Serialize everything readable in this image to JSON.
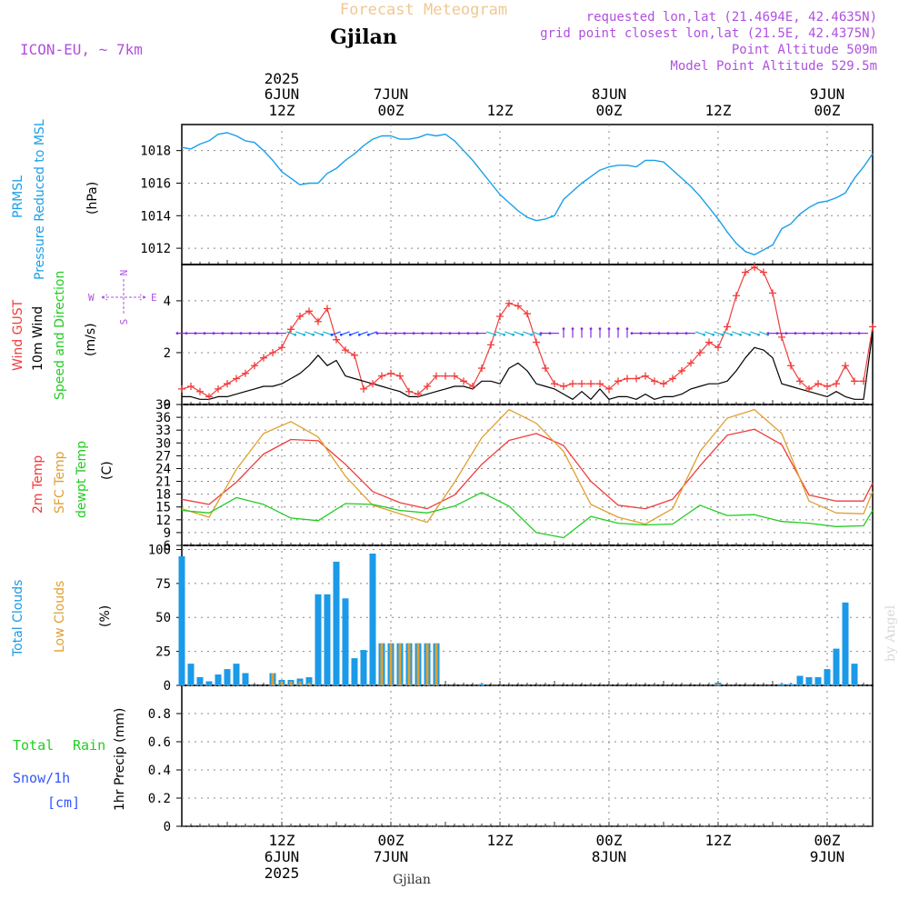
{
  "header": {
    "title": "Forecast Meteogram",
    "location": "Gjilan",
    "model": "ICON-EU, ~ 7km",
    "requested": "requested lon,lat (21.4694E, 42.4635N)",
    "grid": "grid point closest lon,lat (21.5E, 42.4375N)",
    "point_alt": "Point Altitude 509m",
    "model_alt": "Model Point Altitude 529.5m"
  },
  "time_axis": {
    "top_labels": [
      {
        "l1": "2025",
        "l2": "6JUN",
        "l3": "12Z",
        "h": 12
      },
      {
        "l1": "",
        "l2": "7JUN",
        "l3": "00Z",
        "h": 24
      },
      {
        "l1": "",
        "l2": "",
        "l3": "12Z",
        "h": 36
      },
      {
        "l1": "",
        "l2": "8JUN",
        "l3": "00Z",
        "h": 48
      },
      {
        "l1": "",
        "l2": "",
        "l3": "12Z",
        "h": 60
      },
      {
        "l1": "",
        "l2": "9JUN",
        "l3": "00Z",
        "h": 72
      }
    ],
    "bottom_labels": [
      {
        "l1": "12Z",
        "l2": "6JUN",
        "l3": "2025",
        "h": 12
      },
      {
        "l1": "00Z",
        "l2": "7JUN",
        "l3": "",
        "h": 24
      },
      {
        "l1": "12Z",
        "l2": "",
        "l3": "",
        "h": 36
      },
      {
        "l1": "00Z",
        "l2": "8JUN",
        "l3": "",
        "h": 48
      },
      {
        "l1": "12Z",
        "l2": "",
        "l3": "",
        "h": 60
      },
      {
        "l1": "00Z",
        "l2": "9JUN",
        "l3": "",
        "h": 72
      }
    ],
    "start_hour": 1,
    "end_hour": 77
  },
  "panels": {
    "pressure": {
      "label1": "PRMSL",
      "label2": "Pressure Reduced to MSL",
      "unit": "(hPa)"
    },
    "wind": {
      "label1": "Wind GUST",
      "label2": "10m Wind",
      "label3": "Speed and Direction",
      "unit": "(m/s)",
      "compass": {
        "n": "N",
        "s": "S",
        "w": "W",
        "e": "E"
      }
    },
    "temp": {
      "label1": "2m Temp",
      "label2": "SFC Temp",
      "label3": "dewpt Temp",
      "unit": "(C)"
    },
    "clouds": {
      "label1": "Total Clouds",
      "label2": "Low Clouds",
      "unit": "(%)"
    },
    "precip": {
      "label1": "Total",
      "label2": "Rain",
      "label3": "Snow/1h",
      "label4": "[cm]",
      "unit": "1hr Precip (mm)"
    }
  },
  "footer": {
    "location": "Gjilan",
    "credit": "by Angel"
  },
  "colors": {
    "pressure": "#1aa0e8",
    "gust": "#f03c3c",
    "wind": "#000000",
    "sfc": "#e0a030",
    "dewpt": "#22cc22",
    "total_cloud": "#1a9ae8",
    "low_cloud": "#e0a030",
    "precip_total": "#22cc22",
    "precip_snow": "#3355ff",
    "purple": "#b050e0"
  },
  "chart_data": [
    {
      "type": "line",
      "title": "PRMSL Pressure Reduced to MSL",
      "ylabel": "(hPa)",
      "ylim": [
        1011.0,
        1019.6
      ],
      "yticks": [
        1012,
        1014,
        1016,
        1018
      ],
      "x": [
        1,
        2,
        3,
        4,
        5,
        6,
        7,
        8,
        9,
        10,
        11,
        12,
        13,
        14,
        15,
        16,
        17,
        18,
        19,
        20,
        21,
        22,
        23,
        24,
        25,
        26,
        27,
        28,
        29,
        30,
        31,
        32,
        33,
        34,
        35,
        36,
        37,
        38,
        39,
        40,
        41,
        42,
        43,
        44,
        45,
        46,
        47,
        48,
        49,
        50,
        51,
        52,
        53,
        54,
        55,
        56,
        57,
        58,
        59,
        60,
        61,
        62,
        63,
        64,
        65,
        66,
        67,
        68,
        69,
        70,
        71,
        72,
        73,
        74,
        75,
        76,
        77
      ],
      "series": [
        {
          "name": "PRMSL",
          "values": [
            1018.2,
            1018.1,
            1018.4,
            1018.6,
            1019.0,
            1019.1,
            1018.9,
            1018.6,
            1018.5,
            1018.0,
            1017.4,
            1016.7,
            1016.3,
            1015.9,
            1016.0,
            1016.0,
            1016.6,
            1016.9,
            1017.4,
            1017.8,
            1018.3,
            1018.7,
            1018.9,
            1018.9,
            1018.7,
            1018.7,
            1018.8,
            1019.0,
            1018.9,
            1019.0,
            1018.6,
            1018.0,
            1017.4,
            1016.7,
            1016.0,
            1015.3,
            1014.8,
            1014.3,
            1013.9,
            1013.7,
            1013.8,
            1014.0,
            1015.0,
            1015.5,
            1016.0,
            1016.4,
            1016.8,
            1017.0,
            1017.1,
            1017.1,
            1017.0,
            1017.4,
            1017.4,
            1017.3,
            1016.8,
            1016.3,
            1015.8,
            1015.2,
            1014.5,
            1013.8,
            1013.0,
            1012.3,
            1011.8,
            1011.6,
            1011.9,
            1012.2,
            1013.2,
            1013.5,
            1014.1,
            1014.5,
            1014.8,
            1014.9,
            1015.1,
            1015.4,
            1016.3,
            1017.0,
            1017.8
          ]
        }
      ]
    },
    {
      "type": "line",
      "title": "Wind GUST / 10m Wind Speed and Direction",
      "ylabel": "(m/s)",
      "ylim": [
        0,
        5.4
      ],
      "yticks": [
        0,
        2,
        4
      ],
      "x": [
        1,
        2,
        3,
        4,
        5,
        6,
        7,
        8,
        9,
        10,
        11,
        12,
        13,
        14,
        15,
        16,
        17,
        18,
        19,
        20,
        21,
        22,
        23,
        24,
        25,
        26,
        27,
        28,
        29,
        30,
        31,
        32,
        33,
        34,
        35,
        36,
        37,
        38,
        39,
        40,
        41,
        42,
        43,
        44,
        45,
        46,
        47,
        48,
        49,
        50,
        51,
        52,
        53,
        54,
        55,
        56,
        57,
        58,
        59,
        60,
        61,
        62,
        63,
        64,
        65,
        66,
        67,
        68,
        69,
        70,
        71,
        72,
        73,
        74,
        75,
        76,
        77
      ],
      "series": [
        {
          "name": "Wind GUST",
          "values": [
            0.6,
            0.7,
            0.5,
            0.3,
            0.6,
            0.8,
            1.0,
            1.2,
            1.5,
            1.8,
            2.0,
            2.2,
            2.9,
            3.4,
            3.6,
            3.2,
            3.7,
            2.5,
            2.1,
            1.9,
            0.6,
            0.8,
            1.1,
            1.2,
            1.1,
            0.5,
            0.4,
            0.7,
            1.1,
            1.1,
            1.1,
            0.9,
            0.7,
            1.4,
            2.3,
            3.4,
            3.9,
            3.8,
            3.5,
            2.4,
            1.4,
            0.8,
            0.7,
            0.8,
            0.8,
            0.8,
            0.8,
            0.6,
            0.9,
            1.0,
            1.0,
            1.1,
            0.9,
            0.8,
            1.0,
            1.3,
            1.6,
            2.0,
            2.4,
            2.2,
            3.0,
            4.2,
            5.1,
            5.3,
            5.1,
            4.3,
            2.6,
            1.5,
            0.9,
            0.6,
            0.8,
            0.7,
            0.8,
            1.5,
            0.9,
            0.9,
            3.0
          ]
        },
        {
          "name": "10m Wind",
          "values": [
            0.3,
            0.3,
            0.2,
            0.2,
            0.3,
            0.3,
            0.4,
            0.5,
            0.6,
            0.7,
            0.7,
            0.8,
            1.0,
            1.2,
            1.5,
            1.9,
            1.5,
            1.7,
            1.1,
            1.0,
            0.9,
            0.8,
            0.7,
            0.6,
            0.5,
            0.3,
            0.3,
            0.4,
            0.5,
            0.6,
            0.7,
            0.7,
            0.6,
            0.9,
            0.9,
            0.8,
            1.4,
            1.6,
            1.3,
            0.8,
            0.7,
            0.6,
            0.4,
            0.2,
            0.5,
            0.2,
            0.6,
            0.2,
            0.3,
            0.3,
            0.2,
            0.4,
            0.2,
            0.3,
            0.3,
            0.4,
            0.6,
            0.7,
            0.8,
            0.8,
            0.9,
            1.3,
            1.8,
            2.2,
            2.1,
            1.8,
            0.8,
            0.7,
            0.6,
            0.5,
            0.4,
            0.3,
            0.5,
            0.3,
            0.2,
            0.2,
            2.8
          ]
        }
      ]
    },
    {
      "type": "line",
      "title": "2m Temp / SFC Temp / dewpt Temp",
      "ylabel": "(C)",
      "ylim": [
        6,
        39
      ],
      "yticks": [
        6,
        9,
        12,
        15,
        18,
        21,
        24,
        27,
        30,
        33,
        36,
        39
      ],
      "x": [
        1,
        4,
        7,
        10,
        13,
        16,
        19,
        22,
        25,
        28,
        31,
        34,
        37,
        40,
        43,
        46,
        49,
        52,
        55,
        58,
        61,
        64,
        67,
        70,
        73,
        76,
        77
      ],
      "series": [
        {
          "name": "2m Temp",
          "values": [
            16.8,
            15.6,
            20.8,
            27.4,
            30.8,
            30.5,
            25.0,
            18.6,
            16.0,
            14.6,
            17.8,
            25.0,
            30.6,
            32.2,
            29.4,
            21.0,
            15.4,
            14.6,
            16.8,
            24.6,
            31.8,
            33.2,
            29.6,
            17.8,
            16.4,
            16.4,
            20.6
          ]
        },
        {
          "name": "SFC Temp",
          "values": [
            14.6,
            12.6,
            23.8,
            32.2,
            35.0,
            31.4,
            22.2,
            15.4,
            13.4,
            11.4,
            20.8,
            31.2,
            37.8,
            34.6,
            28.0,
            15.6,
            12.6,
            11.0,
            14.6,
            28.0,
            35.8,
            37.8,
            32.2,
            16.4,
            13.6,
            13.4,
            18.6
          ]
        },
        {
          "name": "dewpt Temp",
          "values": [
            14.2,
            13.6,
            17.2,
            15.6,
            12.4,
            11.8,
            15.8,
            15.6,
            14.2,
            13.6,
            15.2,
            18.4,
            15.2,
            9.0,
            7.8,
            12.8,
            11.2,
            10.8,
            11.0,
            15.4,
            13.0,
            13.2,
            11.6,
            11.2,
            10.4,
            10.6,
            14.2
          ]
        }
      ]
    },
    {
      "type": "bar",
      "title": "Total Clouds / Low Clouds",
      "ylabel": "(%)",
      "ylim": [
        0,
        103
      ],
      "yticks": [
        0,
        25,
        50,
        75,
        100
      ],
      "x": [
        1,
        2,
        3,
        4,
        5,
        6,
        7,
        8,
        9,
        10,
        11,
        12,
        13,
        14,
        15,
        16,
        17,
        18,
        19,
        20,
        21,
        22,
        23,
        24,
        25,
        26,
        27,
        28,
        29,
        30,
        31,
        32,
        33,
        34,
        35,
        36,
        37,
        38,
        39,
        40,
        41,
        42,
        43,
        44,
        45,
        46,
        47,
        48,
        49,
        50,
        51,
        52,
        53,
        54,
        55,
        56,
        57,
        58,
        59,
        60,
        61,
        62,
        63,
        64,
        65,
        66,
        67,
        68,
        69,
        70,
        71,
        72,
        73,
        74,
        75,
        76,
        77
      ],
      "series": [
        {
          "name": "Total Clouds",
          "values": [
            95,
            16,
            6,
            3,
            8,
            12,
            16,
            9,
            0,
            0,
            9,
            4,
            4,
            5,
            6,
            67,
            67,
            91,
            64,
            20,
            26,
            97,
            31,
            31,
            31,
            31,
            31,
            31,
            31,
            0,
            0,
            0,
            0,
            1,
            0,
            0,
            0,
            0,
            0,
            0,
            0,
            0,
            0,
            0,
            0,
            0,
            0,
            0,
            0,
            0,
            0,
            0,
            0,
            0,
            0,
            0,
            0,
            0,
            0,
            2,
            0,
            0,
            0,
            0,
            0,
            0,
            1,
            1,
            7,
            6,
            6,
            12,
            27,
            61,
            16,
            0,
            0
          ]
        },
        {
          "name": "Low Clouds",
          "values": [
            0,
            0,
            0,
            0,
            0,
            0,
            0,
            0,
            0,
            0,
            9,
            3,
            3,
            3,
            2,
            0,
            0,
            0,
            0,
            0,
            0,
            0,
            31,
            31,
            31,
            31,
            31,
            31,
            31,
            0,
            0,
            0,
            0,
            0,
            0,
            0,
            0,
            0,
            0,
            0,
            0,
            0,
            0,
            0,
            0,
            0,
            0,
            0,
            0,
            0,
            0,
            0,
            0,
            0,
            0,
            0,
            0,
            0,
            0,
            1,
            0,
            0,
            0,
            0,
            0,
            0,
            0,
            0,
            0,
            0,
            0,
            0,
            0,
            0,
            0,
            0,
            0
          ]
        }
      ]
    },
    {
      "type": "line",
      "title": "1hr Precip (mm)",
      "ylabel": "1hr Precip (mm)",
      "ylim": [
        0,
        1.0
      ],
      "yticks": [
        0,
        0.2,
        0.4,
        0.6,
        0.8
      ],
      "ytick_labels": [
        "0",
        "0.2",
        "0.4",
        "0.6",
        "0.8"
      ],
      "x": [
        1,
        77
      ],
      "series": [
        {
          "name": "Total Rain",
          "values": [
            0,
            0
          ]
        }
      ]
    }
  ]
}
